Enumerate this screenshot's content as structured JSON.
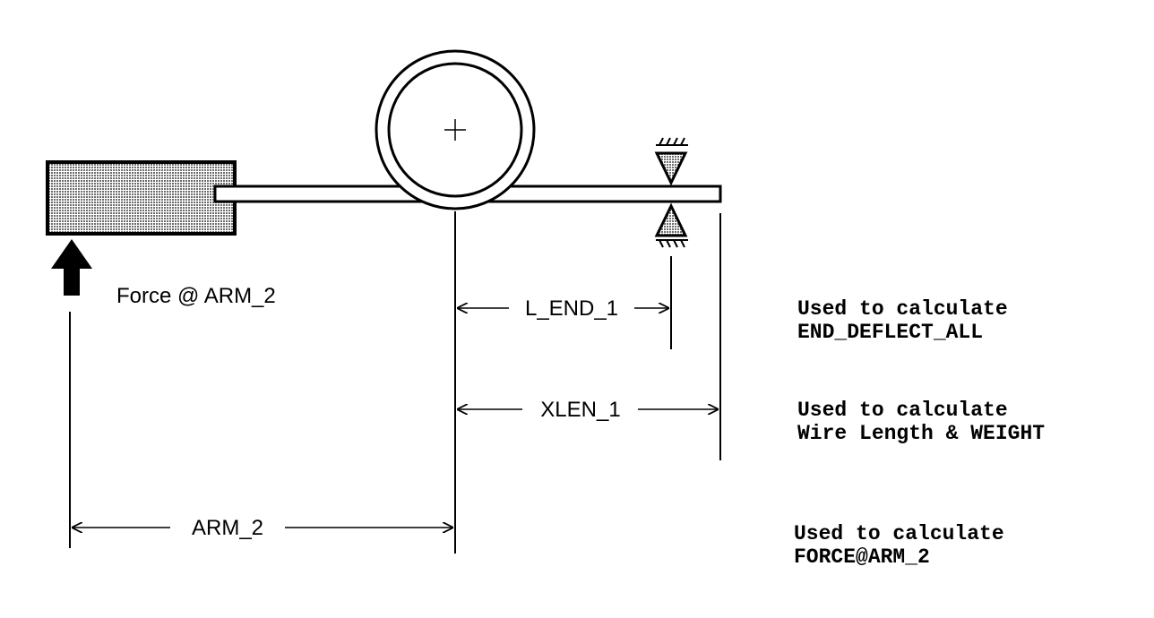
{
  "diagram": {
    "force_label": "Force @ ARM_2",
    "dimensions": [
      {
        "label": "L_END_1",
        "note_lines": [
          "Used to calculate",
          "END_DEFLECT_ALL"
        ]
      },
      {
        "label": "XLEN_1",
        "note_lines": [
          "Used to calculate",
          "Wire Length & WEIGHT"
        ]
      },
      {
        "label": "ARM_2",
        "note_lines": [
          "Used to calculate",
          "FORCE@ARM_2"
        ]
      }
    ]
  },
  "colors": {
    "ink": "#000000",
    "fill": "#bdbdbd",
    "background": "#ffffff"
  }
}
